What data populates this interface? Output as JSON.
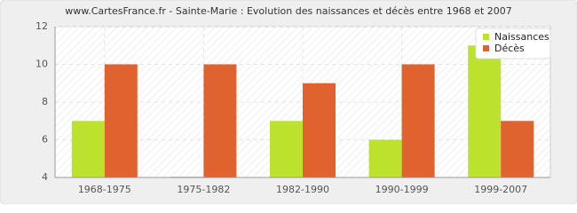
{
  "chart_data": {
    "type": "bar",
    "title": "www.CartesFrance.fr - Sainte-Marie : Evolution des naissances et décès entre 1968 et 2007",
    "categories": [
      "1968-1975",
      "1975-1982",
      "1982-1990",
      "1990-1999",
      "1999-2007"
    ],
    "series": [
      {
        "name": "Naissances",
        "color": "#bce22e",
        "values": [
          7,
          4,
          7,
          6,
          11
        ]
      },
      {
        "name": "Décès",
        "color": "#e0622f",
        "values": [
          10,
          10,
          9,
          10,
          7
        ]
      }
    ],
    "ylim": [
      4,
      12
    ],
    "yticks": [
      4,
      6,
      8,
      10,
      12
    ],
    "grid": true,
    "legend": "top-right"
  }
}
